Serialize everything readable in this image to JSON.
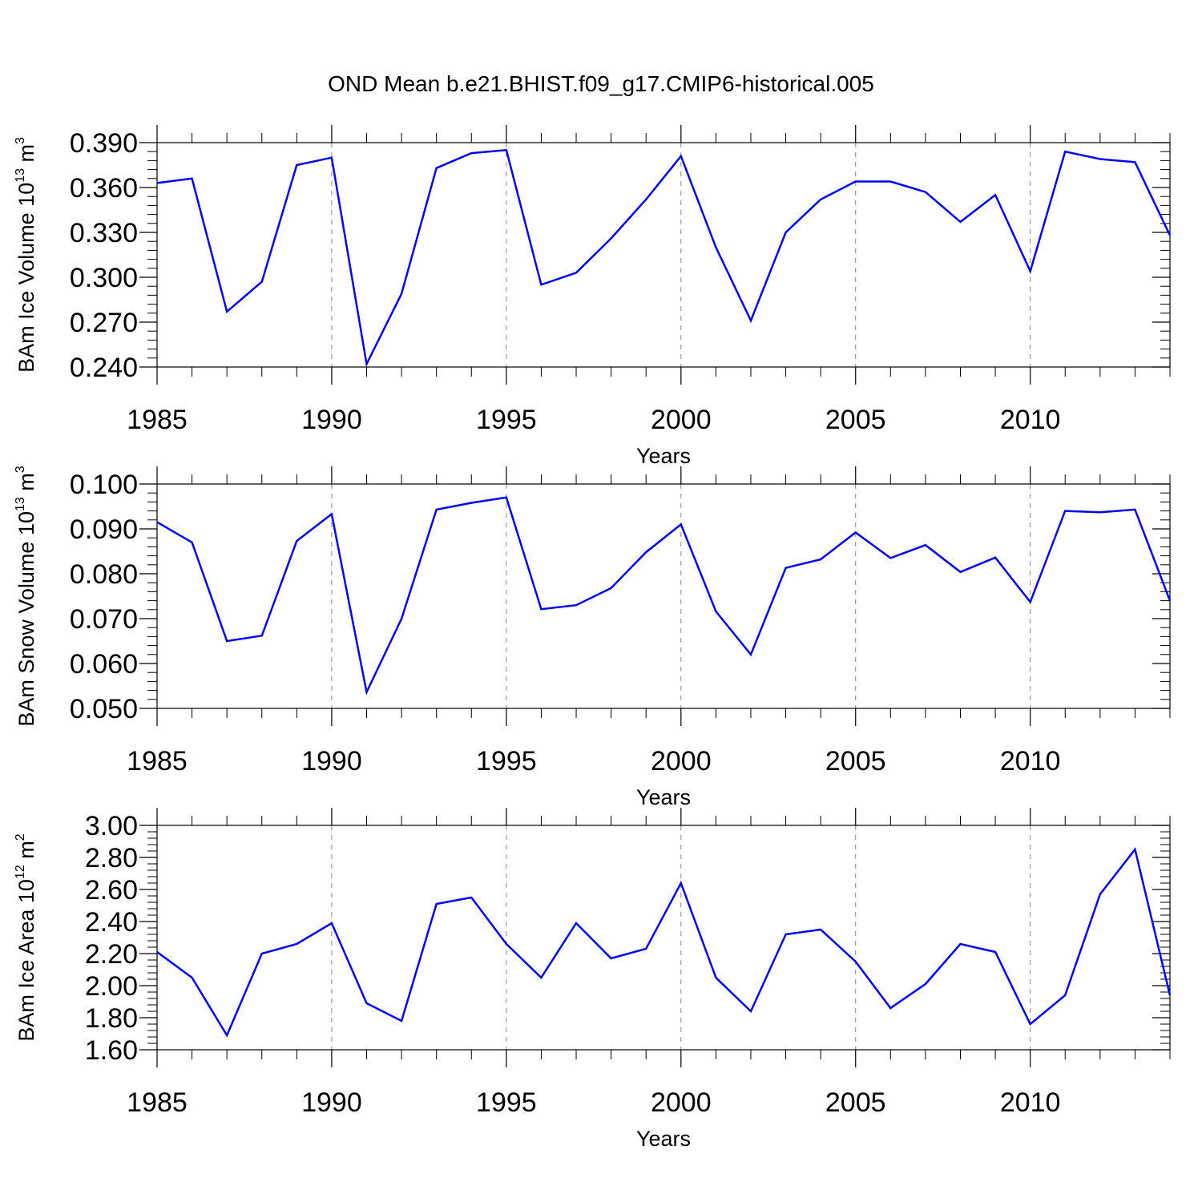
{
  "title": "OND Mean b.e21.BHIST.f09_g17.CMIP6-historical.005",
  "colors": {
    "series": "#0000ff",
    "axis": "#000000",
    "grid": "#888888"
  },
  "chart_data": [
    {
      "type": "line",
      "ylabel_text": "BAm Ice Volume 10",
      "ylabel_exp": "13",
      "ylabel_unit": " m",
      "ylabel_unit_exp": "3",
      "xlabel": "Years",
      "xlim": [
        1985,
        2014
      ],
      "ylim": [
        0.24,
        0.39
      ],
      "xticks": [
        1985,
        1990,
        1995,
        2000,
        2005,
        2010
      ],
      "xtick_labels": [
        "1985",
        "1990",
        "1995",
        "2000",
        "2005",
        "2010"
      ],
      "yticks": [
        0.24,
        0.27,
        0.3,
        0.33,
        0.36,
        0.39
      ],
      "ytick_labels": [
        "0.240",
        "0.270",
        "0.300",
        "0.330",
        "0.360",
        "0.390"
      ],
      "x": [
        1985,
        1986,
        1987,
        1988,
        1989,
        1990,
        1991,
        1992,
        1993,
        1994,
        1995,
        1996,
        1997,
        1998,
        1999,
        2000,
        2001,
        2002,
        2003,
        2004,
        2005,
        2006,
        2007,
        2008,
        2009,
        2010,
        2011,
        2012,
        2013,
        2014
      ],
      "values": [
        0.363,
        0.366,
        0.277,
        0.297,
        0.375,
        0.38,
        0.242,
        0.289,
        0.373,
        0.383,
        0.385,
        0.295,
        0.303,
        0.326,
        0.352,
        0.381,
        0.32,
        0.271,
        0.33,
        0.352,
        0.364,
        0.364,
        0.357,
        0.337,
        0.355,
        0.304,
        0.384,
        0.379,
        0.377,
        0.328
      ]
    },
    {
      "type": "line",
      "ylabel_text": "BAm Snow Volume 10",
      "ylabel_exp": "13",
      "ylabel_unit": " m",
      "ylabel_unit_exp": "3",
      "xlabel": "Years",
      "xlim": [
        1985,
        2014
      ],
      "ylim": [
        0.05,
        0.1
      ],
      "xticks": [
        1985,
        1990,
        1995,
        2000,
        2005,
        2010
      ],
      "xtick_labels": [
        "1985",
        "1990",
        "1995",
        "2000",
        "2005",
        "2010"
      ],
      "yticks": [
        0.05,
        0.06,
        0.07,
        0.08,
        0.09,
        0.1
      ],
      "ytick_labels": [
        "0.050",
        "0.060",
        "0.070",
        "0.080",
        "0.090",
        "0.100"
      ],
      "x": [
        1985,
        1986,
        1987,
        1988,
        1989,
        1990,
        1991,
        1992,
        1993,
        1994,
        1995,
        1996,
        1997,
        1998,
        1999,
        2000,
        2001,
        2002,
        2003,
        2004,
        2005,
        2006,
        2007,
        2008,
        2009,
        2010,
        2011,
        2012,
        2013,
        2014
      ],
      "values": [
        0.0915,
        0.087,
        0.065,
        0.0662,
        0.0873,
        0.0933,
        0.0536,
        0.07,
        0.0943,
        0.0958,
        0.097,
        0.0721,
        0.073,
        0.0768,
        0.0848,
        0.091,
        0.0716,
        0.062,
        0.0813,
        0.0832,
        0.0892,
        0.0835,
        0.0864,
        0.0804,
        0.0836,
        0.0737,
        0.094,
        0.0937,
        0.0943,
        0.074
      ]
    },
    {
      "type": "line",
      "ylabel_text": "BAm Ice Area 10",
      "ylabel_exp": "12",
      "ylabel_unit": " m",
      "ylabel_unit_exp": "2",
      "xlabel": "Years",
      "xlim": [
        1985,
        2014
      ],
      "ylim": [
        1.6,
        3.0
      ],
      "xticks": [
        1985,
        1990,
        1995,
        2000,
        2005,
        2010
      ],
      "xtick_labels": [
        "1985",
        "1990",
        "1995",
        "2000",
        "2005",
        "2010"
      ],
      "yticks": [
        1.6,
        1.8,
        2.0,
        2.2,
        2.4,
        2.6,
        2.8,
        3.0
      ],
      "ytick_labels": [
        "1.60",
        "1.80",
        "2.00",
        "2.20",
        "2.40",
        "2.60",
        "2.80",
        "3.00"
      ],
      "x": [
        1985,
        1986,
        1987,
        1988,
        1989,
        1990,
        1991,
        1992,
        1993,
        1994,
        1995,
        1996,
        1997,
        1998,
        1999,
        2000,
        2001,
        2002,
        2003,
        2004,
        2005,
        2006,
        2007,
        2008,
        2009,
        2010,
        2011,
        2012,
        2013,
        2014
      ],
      "values": [
        2.21,
        2.05,
        1.69,
        2.2,
        2.26,
        2.39,
        1.89,
        1.78,
        2.51,
        2.55,
        2.26,
        2.05,
        2.39,
        2.17,
        2.23,
        2.64,
        2.05,
        1.84,
        2.32,
        2.35,
        2.15,
        1.86,
        2.01,
        2.26,
        2.21,
        1.76,
        1.94,
        2.57,
        2.85,
        1.94
      ]
    }
  ]
}
